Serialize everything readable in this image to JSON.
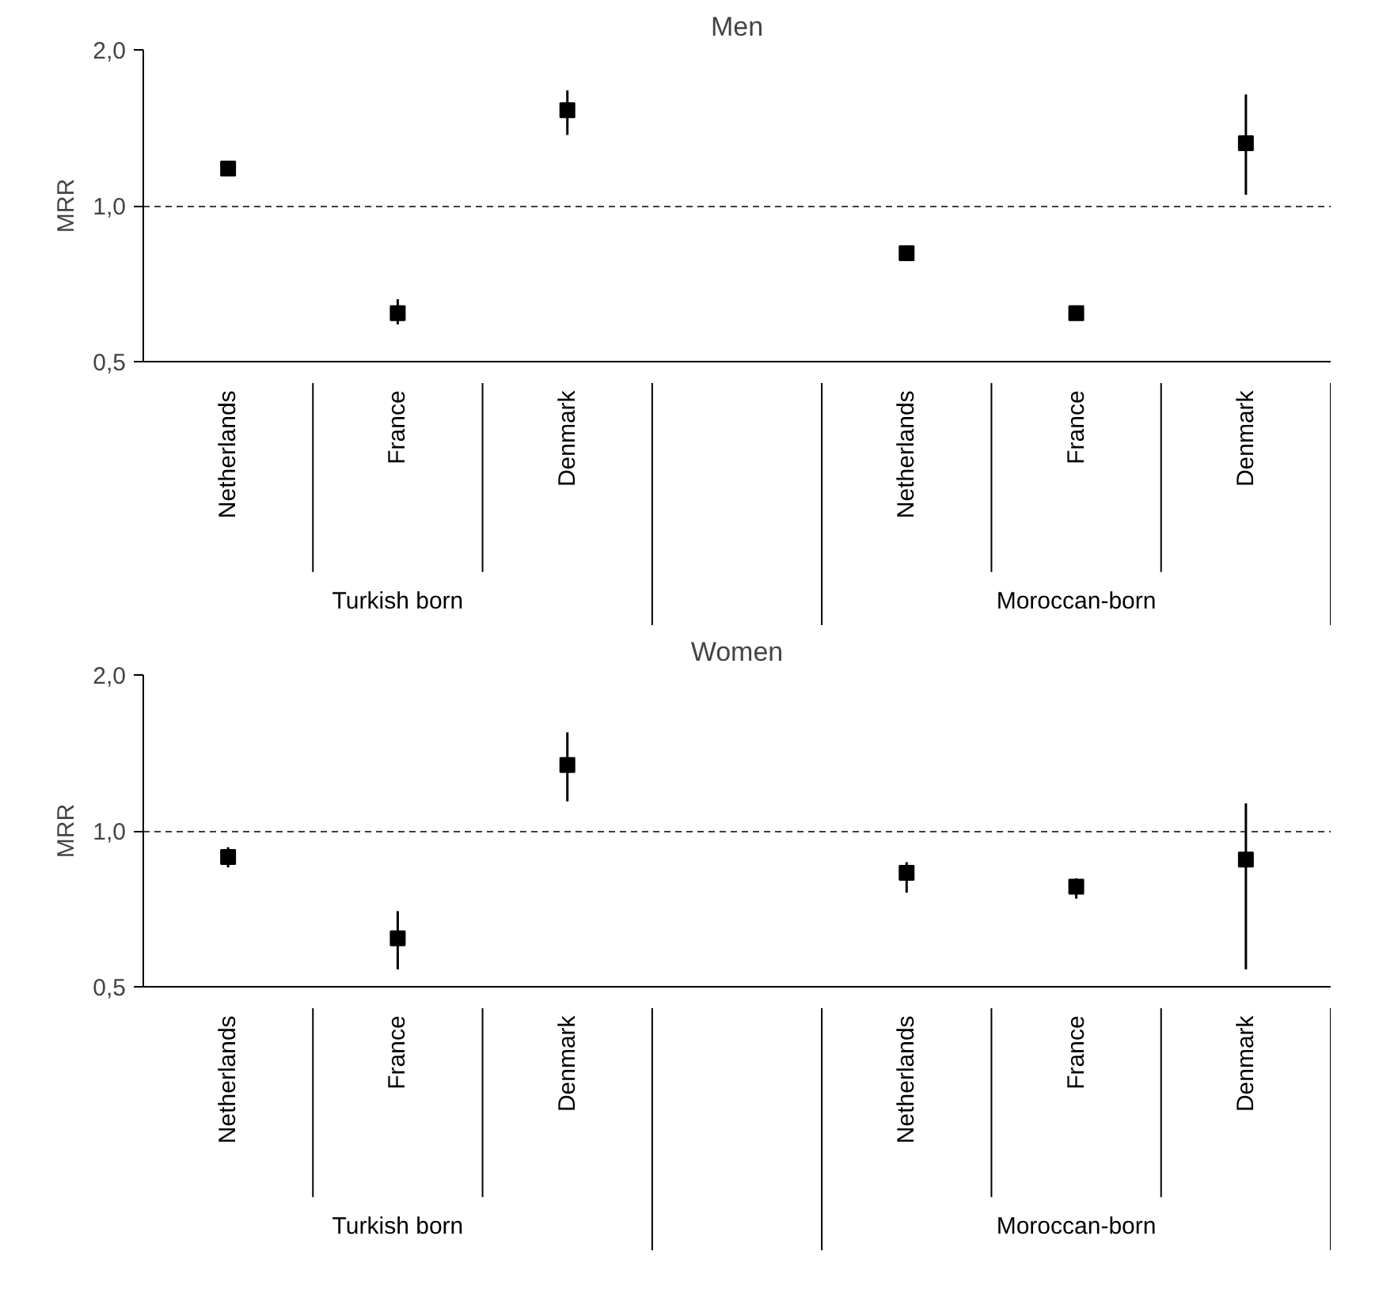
{
  "chart_data": [
    {
      "type": "scatter",
      "title": "Men",
      "ylabel": "MRR",
      "categories": [
        "Netherlands",
        "France",
        "Denmark",
        null,
        "Netherlands",
        "France",
        "Denmark"
      ],
      "values": [
        1.18,
        0.62,
        1.53,
        null,
        0.81,
        0.62,
        1.32
      ],
      "errors": [
        null,
        [
          0.59,
          0.66
        ],
        [
          1.37,
          1.67
        ],
        null,
        null,
        null,
        [
          1.05,
          1.64
        ]
      ],
      "color": "#000000",
      "marker": "square",
      "log": "y",
      "ylim": [
        0.5,
        2.0
      ],
      "yticks": [
        {
          "value": 0.5,
          "label": "0,5"
        },
        {
          "value": 1.0,
          "label": "1,0"
        },
        {
          "value": 2.0,
          "label": "2,0"
        }
      ],
      "grid": "y",
      "line_style": "dashed",
      "annotations": [
        "Turkish born",
        "Moroccan-born"
      ]
    },
    {
      "type": "scatter",
      "title": "Women",
      "ylabel": "MRR",
      "categories": [
        "Netherlands",
        "France",
        "Denmark",
        null,
        "Netherlands",
        "France",
        "Denmark"
      ],
      "values": [
        0.89,
        0.62,
        1.34,
        null,
        0.83,
        0.78,
        0.88
      ],
      "errors": [
        [
          0.85,
          0.93
        ],
        [
          0.54,
          0.7
        ],
        [
          1.14,
          1.55
        ],
        null,
        [
          0.76,
          0.87
        ],
        [
          0.74,
          0.81
        ],
        [
          0.54,
          1.13
        ]
      ],
      "color": "#000000",
      "marker": "square",
      "log": "y",
      "ylim": [
        0.5,
        2.0
      ],
      "yticks": [
        {
          "value": 0.5,
          "label": "0,5"
        },
        {
          "value": 1.0,
          "label": "1,0"
        },
        {
          "value": 2.0,
          "label": "2,0"
        }
      ],
      "grid": "y",
      "line_style": "dashed",
      "annotations": [
        "Turkish born",
        "Moroccan-born"
      ]
    }
  ]
}
